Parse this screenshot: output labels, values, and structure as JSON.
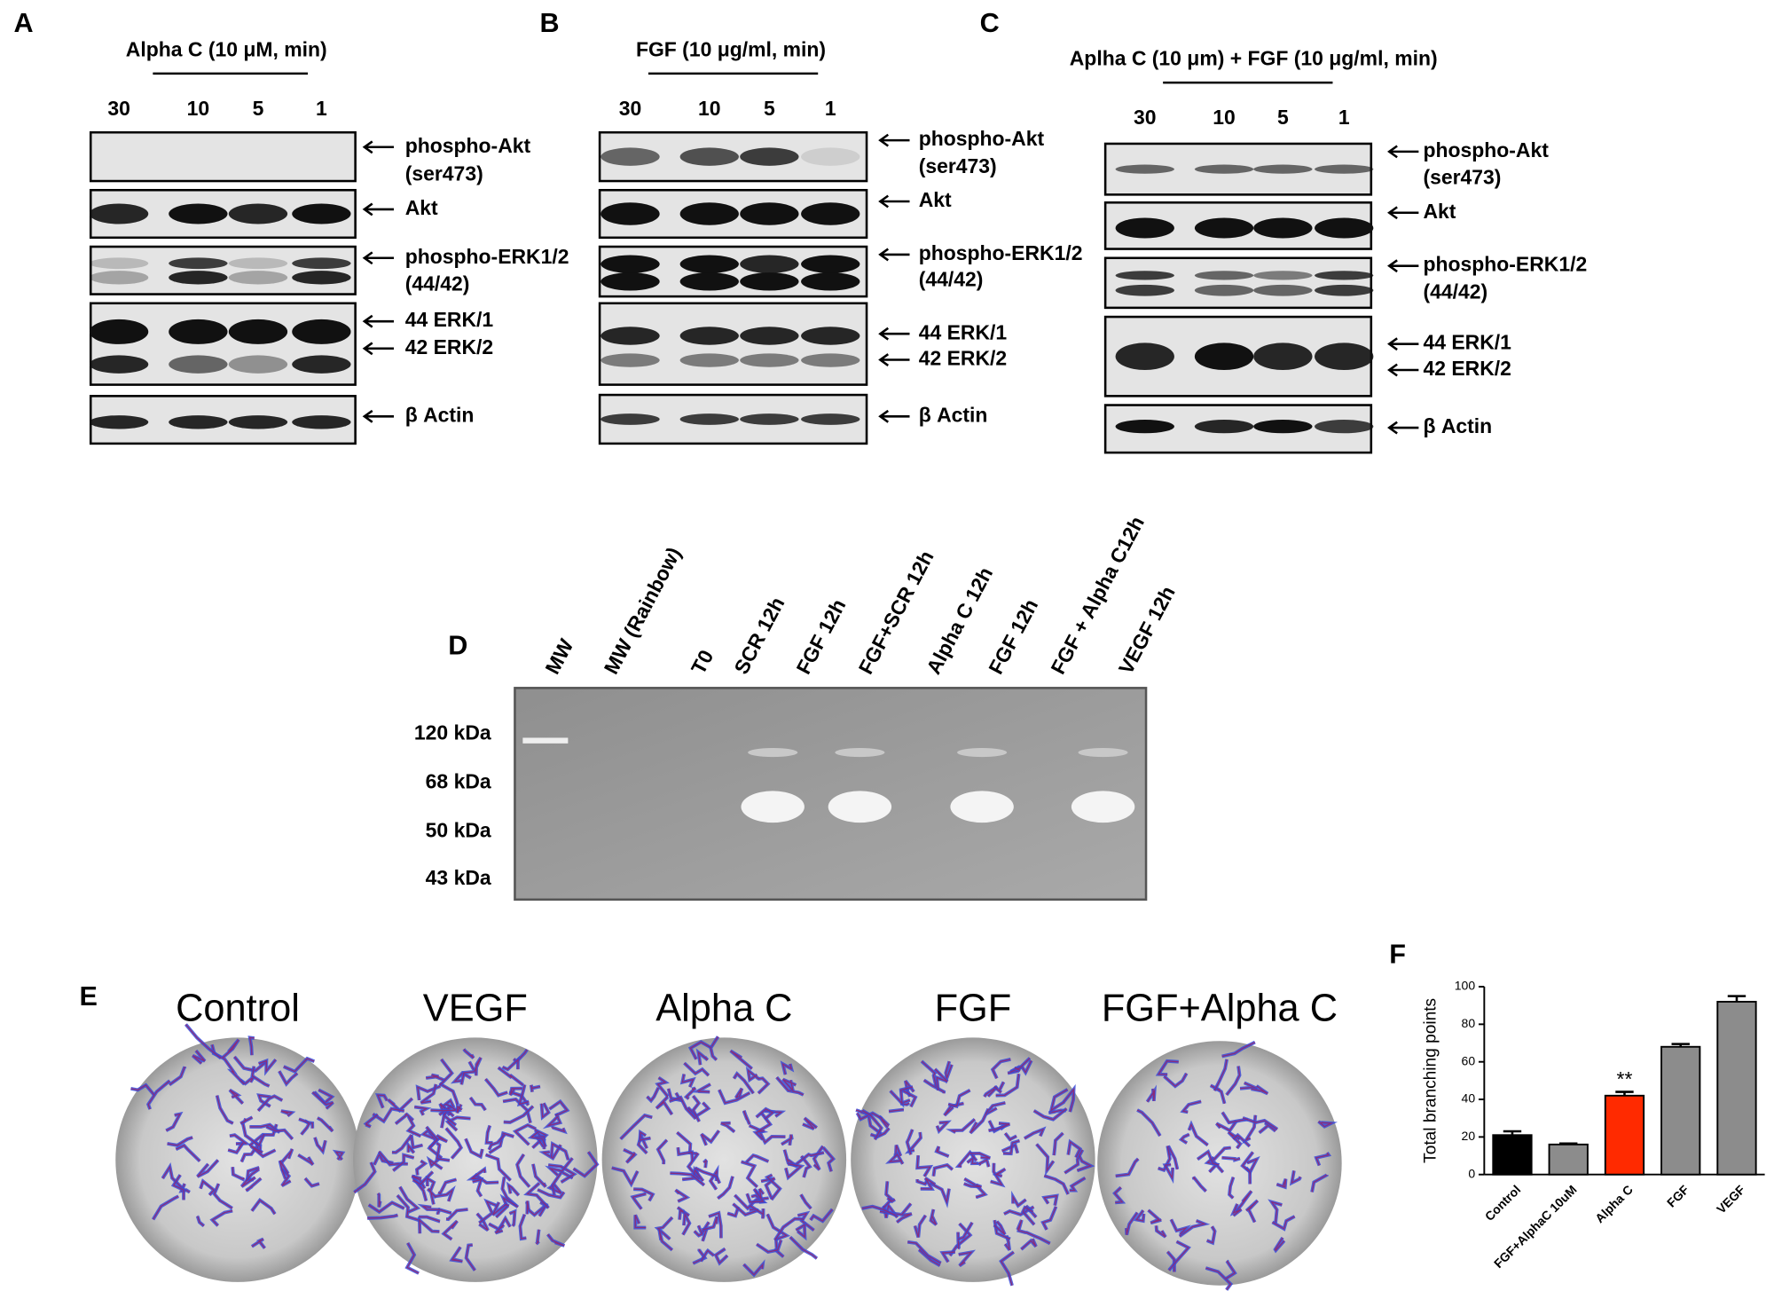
{
  "panel_a": {
    "letter": "A",
    "title": "Alpha C (10 μM, min)",
    "lanes": [
      "30",
      "10",
      "5",
      "1"
    ],
    "labels": [
      "phospho-Akt",
      "(ser473)",
      "Akt",
      "phospho-ERK1/2",
      "(44/42)",
      "44 ERK/1",
      "42 ERK/2",
      "β Actin"
    ]
  },
  "panel_b": {
    "letter": "B",
    "title": "FGF (10 μg/ml, min)",
    "lanes": [
      "30",
      "10",
      "5",
      "1"
    ],
    "labels": [
      "phospho-Akt",
      "(ser473)",
      "Akt",
      "phospho-ERK1/2",
      "(44/42)",
      "44 ERK/1",
      "42 ERK/2",
      "β Actin"
    ]
  },
  "panel_c": {
    "letter": "C",
    "title": "Aplha C  (10 μm) + FGF (10 μg/ml, min)",
    "lanes": [
      "30",
      "10",
      "5",
      "1"
    ],
    "labels": [
      "phospho-Akt",
      "(ser473)",
      "Akt",
      "phospho-ERK1/2",
      "(44/42)",
      "44 ERK/1",
      "42 ERK/2",
      "β Actin"
    ]
  },
  "panel_d": {
    "letter": "D",
    "lanes": [
      "MW",
      "MW (Rainbow)",
      "T0",
      "SCR 12h",
      "FGF 12h",
      "FGF+SCR 12h",
      "Alpha C 12h",
      "FGF 12h",
      "FGF + Alpha C12h",
      "VEGF 12h"
    ],
    "markers": [
      "120 kDa",
      "68 kDa",
      "50 kDa",
      "43 kDa"
    ]
  },
  "panel_e": {
    "letter": "E",
    "titles": [
      "Control",
      "VEGF",
      "Alpha C",
      "FGF",
      "FGF+Alpha C"
    ]
  },
  "panel_f": {
    "letter": "F"
  },
  "chart_data": {
    "type": "bar",
    "ylabel": "Total branching points",
    "categories": [
      "Control",
      "FGF+AlphaC 10uM",
      "Alpha C",
      "FGF",
      "VEGF"
    ],
    "values": [
      21,
      16,
      42,
      68,
      92
    ],
    "errors": [
      2,
      0.5,
      2,
      1.5,
      3
    ],
    "colors": [
      "#000000",
      "#8c8c8c",
      "#ff2a00",
      "#8c8c8c",
      "#8c8c8c"
    ],
    "annotations": [
      null,
      null,
      "**",
      null,
      null
    ],
    "ylim": [
      0,
      100
    ],
    "yticks": [
      0,
      20,
      40,
      60,
      80,
      100
    ]
  }
}
